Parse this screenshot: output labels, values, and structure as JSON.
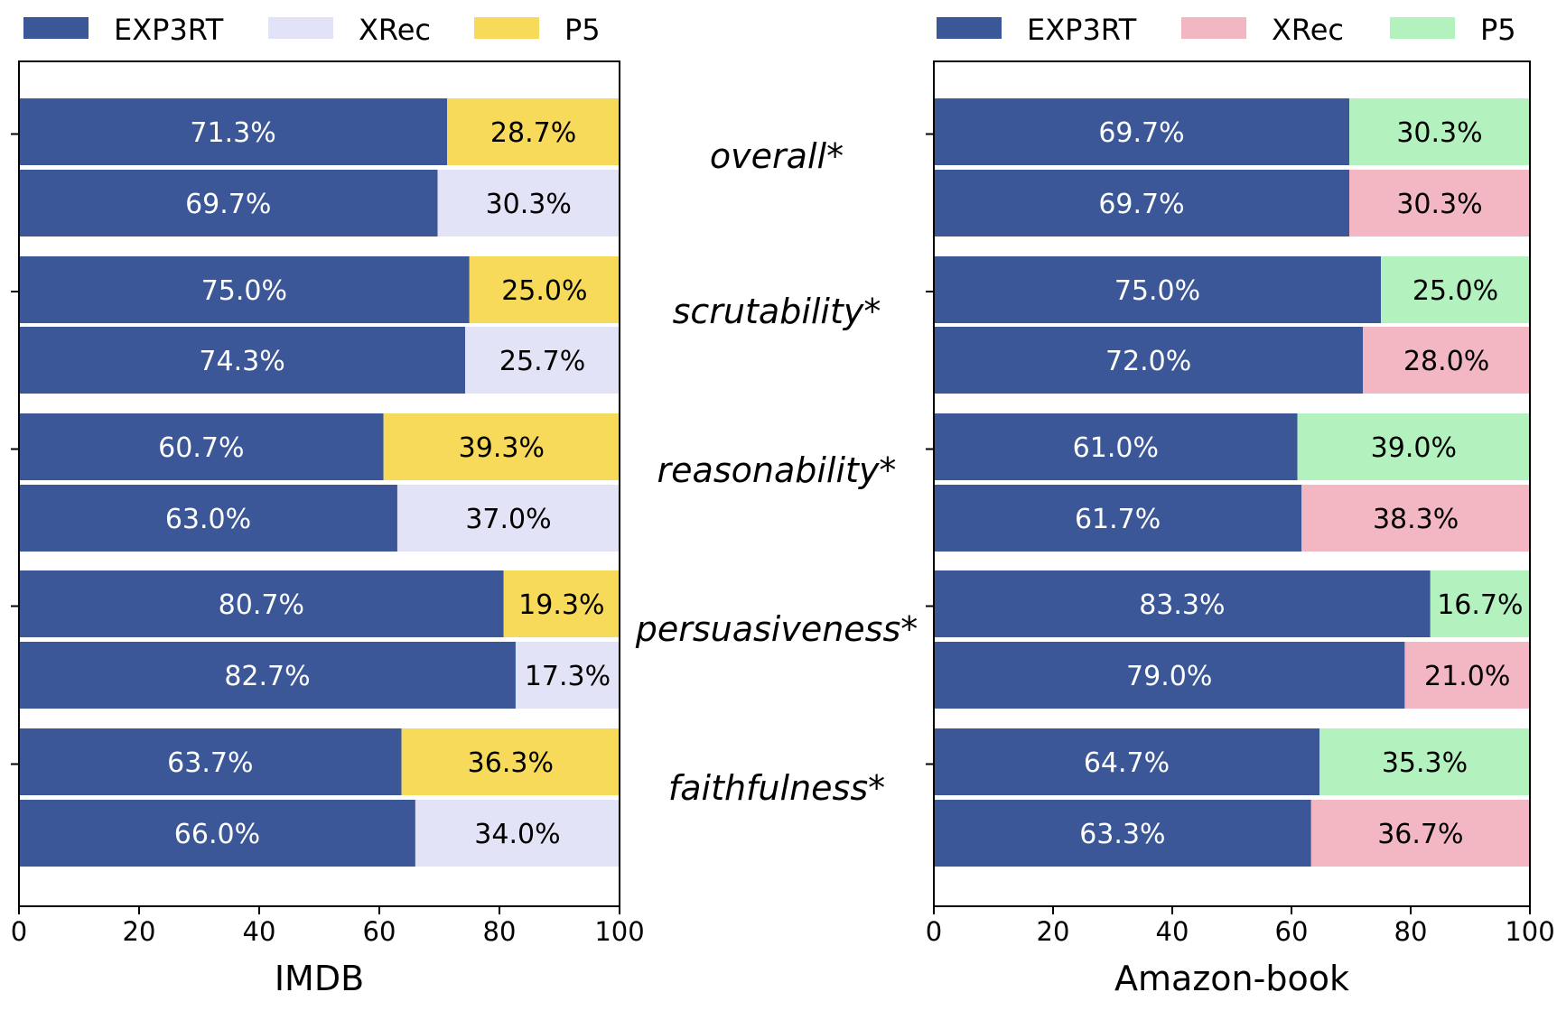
{
  "chart_data": [
    {
      "type": "bar",
      "orientation": "horizontal",
      "stacked": true,
      "xlabel": "IMDB",
      "xlim": [
        0,
        100
      ],
      "xticks": [
        0,
        20,
        40,
        60,
        80,
        100
      ],
      "legend": {
        "placement": "top",
        "entries": [
          {
            "name": "EXP3RT",
            "color": "#3b5797"
          },
          {
            "name": "XRec",
            "color": "#e3e3f8"
          },
          {
            "name": "P5",
            "color": "#f7da5a"
          }
        ]
      },
      "rows": [
        {
          "group": "overall*",
          "left_name": "EXP3RT",
          "left": 71.3,
          "right_name": "P5",
          "right": 28.7,
          "left_label": "71.3%",
          "right_label": "28.7%",
          "right_color": "#f7da5a"
        },
        {
          "group": "overall*",
          "left_name": "EXP3RT",
          "left": 69.7,
          "right_name": "XRec",
          "right": 30.3,
          "left_label": "69.7%",
          "right_label": "30.3%",
          "right_color": "#e3e3f8"
        },
        {
          "group": "scrutability*",
          "left_name": "EXP3RT",
          "left": 75.0,
          "right_name": "P5",
          "right": 25.0,
          "left_label": "75.0%",
          "right_label": "25.0%",
          "right_color": "#f7da5a"
        },
        {
          "group": "scrutability*",
          "left_name": "EXP3RT",
          "left": 74.3,
          "right_name": "XRec",
          "right": 25.7,
          "left_label": "74.3%",
          "right_label": "25.7%",
          "right_color": "#e3e3f8"
        },
        {
          "group": "reasonability*",
          "left_name": "EXP3RT",
          "left": 60.7,
          "right_name": "P5",
          "right": 39.3,
          "left_label": "60.7%",
          "right_label": "39.3%",
          "right_color": "#f7da5a"
        },
        {
          "group": "reasonability*",
          "left_name": "EXP3RT",
          "left": 63.0,
          "right_name": "XRec",
          "right": 37.0,
          "left_label": "63.0%",
          "right_label": "37.0%",
          "right_color": "#e3e3f8"
        },
        {
          "group": "persuasiveness*",
          "left_name": "EXP3RT",
          "left": 80.7,
          "right_name": "P5",
          "right": 19.3,
          "left_label": "80.7%",
          "right_label": "19.3%",
          "right_color": "#f7da5a"
        },
        {
          "group": "persuasiveness*",
          "left_name": "EXP3RT",
          "left": 82.7,
          "right_name": "XRec",
          "right": 17.3,
          "left_label": "82.7%",
          "right_label": "17.3%",
          "right_color": "#e3e3f8"
        },
        {
          "group": "faithfulness*",
          "left_name": "EXP3RT",
          "left": 63.7,
          "right_name": "P5",
          "right": 36.3,
          "left_label": "63.7%",
          "right_label": "36.3%",
          "right_color": "#f7da5a"
        },
        {
          "group": "faithfulness*",
          "left_name": "EXP3RT",
          "left": 66.0,
          "right_name": "XRec",
          "right": 34.0,
          "left_label": "66.0%",
          "right_label": "34.0%",
          "right_color": "#e3e3f8"
        }
      ]
    },
    {
      "type": "bar",
      "orientation": "horizontal",
      "stacked": true,
      "xlabel": "Amazon-book",
      "xlim": [
        0,
        100
      ],
      "xticks": [
        0,
        20,
        40,
        60,
        80,
        100
      ],
      "legend": {
        "placement": "top",
        "entries": [
          {
            "name": "EXP3RT",
            "color": "#3b5797"
          },
          {
            "name": "XRec",
            "color": "#f3b6c3"
          },
          {
            "name": "P5",
            "color": "#b3f2be"
          }
        ]
      },
      "rows": [
        {
          "group": "overall*",
          "left_name": "EXP3RT",
          "left": 69.7,
          "right_name": "P5",
          "right": 30.3,
          "left_label": "69.7%",
          "right_label": "30.3%",
          "right_color": "#b3f2be"
        },
        {
          "group": "overall*",
          "left_name": "EXP3RT",
          "left": 69.7,
          "right_name": "XRec",
          "right": 30.3,
          "left_label": "69.7%",
          "right_label": "30.3%",
          "right_color": "#f3b6c3"
        },
        {
          "group": "scrutability*",
          "left_name": "EXP3RT",
          "left": 75.0,
          "right_name": "P5",
          "right": 25.0,
          "left_label": "75.0%",
          "right_label": "25.0%",
          "right_color": "#b3f2be"
        },
        {
          "group": "scrutability*",
          "left_name": "EXP3RT",
          "left": 72.0,
          "right_name": "XRec",
          "right": 28.0,
          "left_label": "72.0%",
          "right_label": "28.0%",
          "right_color": "#f3b6c3"
        },
        {
          "group": "reasonability*",
          "left_name": "EXP3RT",
          "left": 61.0,
          "right_name": "P5",
          "right": 39.0,
          "left_label": "61.0%",
          "right_label": "39.0%",
          "right_color": "#b3f2be"
        },
        {
          "group": "reasonability*",
          "left_name": "EXP3RT",
          "left": 61.7,
          "right_name": "XRec",
          "right": 38.3,
          "left_label": "61.7%",
          "right_label": "38.3%",
          "right_color": "#f3b6c3"
        },
        {
          "group": "persuasiveness*",
          "left_name": "EXP3RT",
          "left": 83.3,
          "right_name": "P5",
          "right": 16.7,
          "left_label": "83.3%",
          "right_label": "16.7%",
          "right_color": "#b3f2be"
        },
        {
          "group": "persuasiveness*",
          "left_name": "EXP3RT",
          "left": 79.0,
          "right_name": "XRec",
          "right": 21.0,
          "left_label": "79.0%",
          "right_label": "21.0%",
          "right_color": "#f3b6c3"
        },
        {
          "group": "faithfulness*",
          "left_name": "EXP3RT",
          "left": 64.7,
          "right_name": "P5",
          "right": 35.3,
          "left_label": "64.7%",
          "right_label": "35.3%",
          "right_color": "#b3f2be"
        },
        {
          "group": "faithfulness*",
          "left_name": "EXP3RT",
          "left": 63.3,
          "right_name": "XRec",
          "right": 36.7,
          "left_label": "63.3%",
          "right_label": "36.7%",
          "right_color": "#f3b6c3"
        }
      ]
    }
  ],
  "categories": [
    "overall*",
    "scrutability*",
    "reasonability*",
    "persuasiveness*",
    "faithfulness*"
  ],
  "colors": {
    "exp3rt": "#3b5797",
    "left_label_text": "#ffffff",
    "right_label_text": "#000000",
    "axis": "#000000"
  }
}
